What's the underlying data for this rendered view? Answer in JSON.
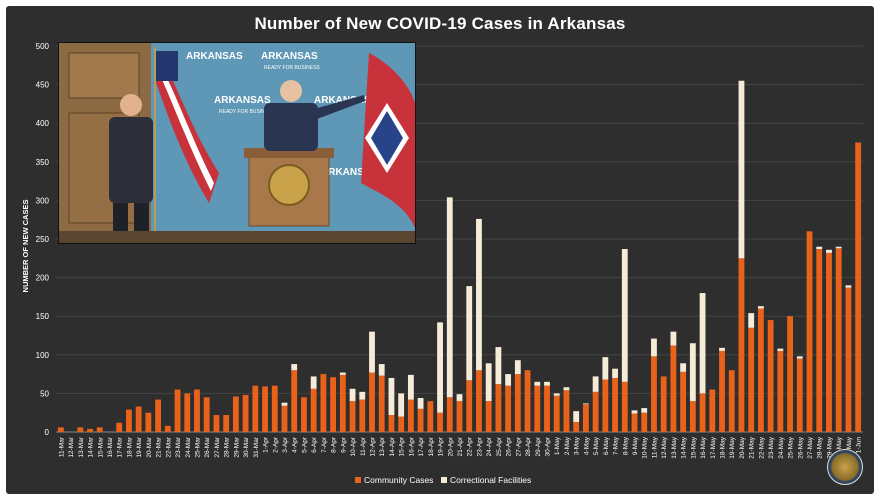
{
  "chart_data": {
    "type": "bar",
    "stacked": true,
    "title": "Number of New COVID-19 Cases in Arkansas",
    "xlabel": "",
    "ylabel": "NUMBER OF NEW CASES",
    "ylim": [
      0,
      500
    ],
    "yticks": [
      0,
      50,
      100,
      150,
      200,
      250,
      300,
      350,
      400,
      450,
      500
    ],
    "grid": true,
    "legend": "bottom-center",
    "categories": [
      "11-Mar",
      "12-Mar",
      "13-Mar",
      "14-Mar",
      "15-Mar",
      "16-Mar",
      "17-Mar",
      "18-Mar",
      "19-Mar",
      "20-Mar",
      "21-Mar",
      "22-Mar",
      "23-Mar",
      "24-Mar",
      "25-Mar",
      "26-Mar",
      "27-Mar",
      "28-Mar",
      "29-Mar",
      "30-Mar",
      "31-Mar",
      "1-Apr",
      "2-Apr",
      "3-Apr",
      "4-Apr",
      "5-Apr",
      "6-Apr",
      "7-Apr",
      "8-Apr",
      "9-Apr",
      "10-Apr",
      "11-Apr",
      "12-Apr",
      "13-Apr",
      "14-Apr",
      "15-Apr",
      "16-Apr",
      "17-Apr",
      "18-Apr",
      "19-Apr",
      "20-Apr",
      "21-Apr",
      "22-Apr",
      "23-Apr",
      "24-Apr",
      "25-Apr",
      "26-Apr",
      "27-Apr",
      "28-Apr",
      "29-Apr",
      "30-Apr",
      "1-May",
      "2-May",
      "3-May",
      "4-May",
      "5-May",
      "6-May",
      "7-May",
      "8-May",
      "9-May",
      "10-May",
      "11-May",
      "12-May",
      "13-May",
      "14-May",
      "15-May",
      "16-May",
      "17-May",
      "18-May",
      "19-May",
      "20-May",
      "21-May",
      "22-May",
      "23-May",
      "24-May",
      "25-May",
      "26-May",
      "27-May",
      "28-May",
      "29-May",
      "30-May",
      "31-May",
      "1-Jun"
    ],
    "series": [
      {
        "name": "Community Cases",
        "color": "#e8621a",
        "values": [
          6,
          0,
          6,
          4,
          6,
          0,
          12,
          29,
          33,
          25,
          42,
          8,
          55,
          50,
          55,
          45,
          22,
          22,
          46,
          48,
          60,
          59,
          60,
          34,
          80,
          45,
          56,
          75,
          71,
          74,
          40,
          42,
          77,
          73,
          22,
          20,
          42,
          30,
          40,
          25,
          45,
          40,
          67,
          80,
          40,
          62,
          60,
          75,
          80,
          60,
          60,
          47,
          54,
          13,
          36,
          52,
          68,
          70,
          65,
          24,
          25,
          98,
          72,
          112,
          78,
          40,
          50,
          55,
          105,
          80,
          225,
          135,
          160,
          145,
          105,
          150,
          95,
          260,
          237,
          232,
          238,
          187,
          375
        ]
      },
      {
        "name": "Correctional Facilities",
        "color": "#f6ead8",
        "values": [
          0,
          0,
          0,
          0,
          0,
          0,
          0,
          0,
          0,
          0,
          0,
          0,
          0,
          0,
          0,
          0,
          0,
          0,
          0,
          0,
          0,
          0,
          0,
          4,
          8,
          0,
          16,
          0,
          0,
          3,
          16,
          10,
          53,
          15,
          48,
          30,
          32,
          14,
          0,
          117,
          259,
          9,
          122,
          196,
          49,
          48,
          15,
          18,
          0,
          5,
          5,
          3,
          4,
          14,
          1,
          20,
          29,
          12,
          172,
          4,
          6,
          23,
          0,
          18,
          11,
          75,
          130,
          0,
          4,
          0,
          230,
          19,
          3,
          0,
          3,
          0,
          3,
          0,
          3,
          4,
          2,
          3,
          0
        ]
      }
    ]
  },
  "inset_photo": {
    "banner_words": [
      "ARKANSAS",
      "READY FOR BUSINESS"
    ]
  }
}
